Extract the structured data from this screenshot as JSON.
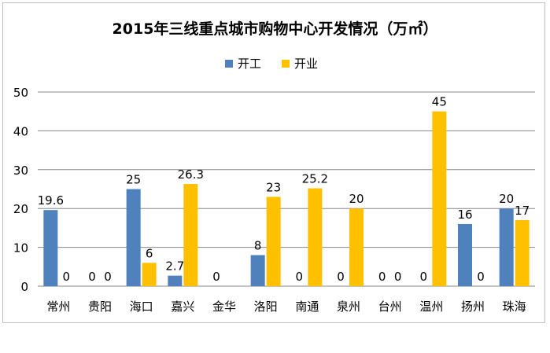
{
  "chart_data": {
    "type": "bar",
    "title": "2015年三线重点城市购物中心开发情况（万㎡）",
    "categories": [
      "常州",
      "贵阳",
      "海口",
      "嘉兴",
      "金华",
      "洛阳",
      "南通",
      "泉州",
      "台州",
      "温州",
      "扬州",
      "珠海"
    ],
    "series": [
      {
        "name": "开工",
        "color": "#4f81bd",
        "values": [
          19.6,
          0,
          25,
          2.7,
          0,
          8,
          0,
          0,
          0,
          0,
          16,
          20
        ]
      },
      {
        "name": "开业",
        "color": "#ffc000",
        "values": [
          0,
          0,
          6,
          26.3,
          null,
          23,
          25.2,
          20,
          0,
          45,
          0,
          17
        ]
      }
    ],
    "ylim": [
      0,
      50
    ],
    "yticks": [
      0,
      10,
      20,
      30,
      40,
      50
    ],
    "grid": true,
    "legend_position": "top"
  }
}
